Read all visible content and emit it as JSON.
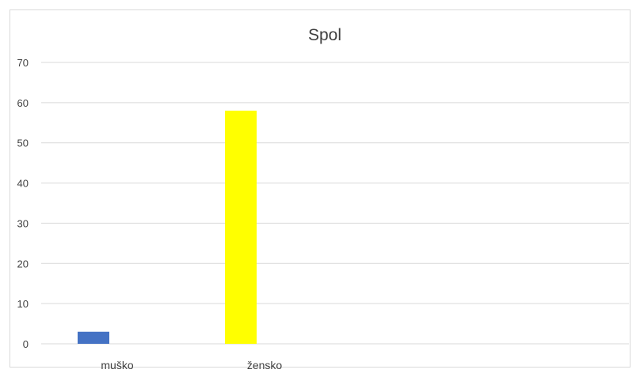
{
  "chart_data": {
    "type": "bar",
    "title": "Spol",
    "categories": [
      "muško",
      "žensko"
    ],
    "values": [
      3,
      58
    ],
    "bar_colors": [
      "#4472c4",
      "#ffff00"
    ],
    "ylim": [
      0,
      70
    ],
    "yticks": [
      0,
      10,
      20,
      30,
      40,
      50,
      60,
      70
    ],
    "grid": true,
    "legend": "none",
    "gridline_color": "#d9d9d9"
  }
}
